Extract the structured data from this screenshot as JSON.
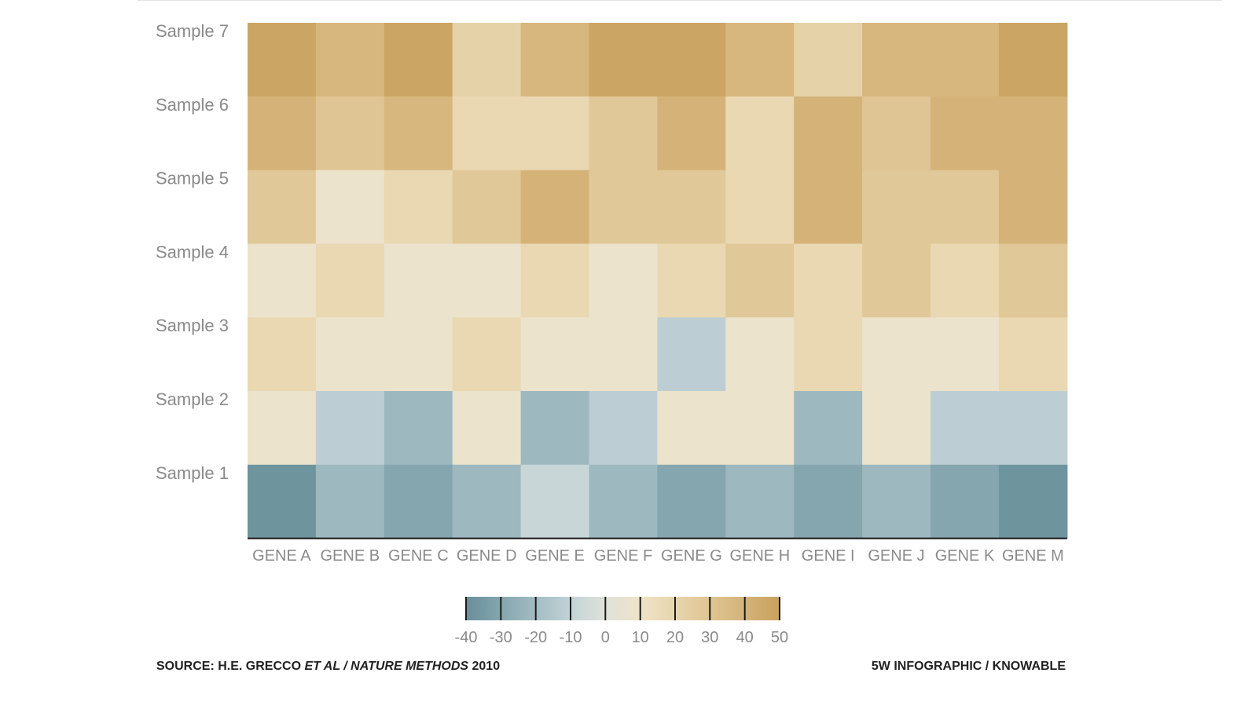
{
  "chart_data": {
    "type": "heatmap",
    "columns": [
      "GENE A",
      "GENE B",
      "GENE C",
      "GENE D",
      "GENE E",
      "GENE F",
      "GENE G",
      "GENE H",
      "GENE I",
      "GENE J",
      "GENE K",
      "GENE M"
    ],
    "rows": [
      "Sample 7",
      "Sample 6",
      "Sample 5",
      "Sample 4",
      "Sample 3",
      "Sample 2",
      "Sample 1"
    ],
    "values": [
      [
        48,
        38,
        48,
        22,
        38,
        48,
        48,
        38,
        22,
        38,
        38,
        48
      ],
      [
        40,
        30,
        38,
        18,
        18,
        28,
        40,
        18,
        40,
        30,
        40,
        40
      ],
      [
        28,
        8,
        18,
        28,
        40,
        28,
        28,
        18,
        40,
        28,
        28,
        40
      ],
      [
        8,
        18,
        8,
        8,
        18,
        8,
        18,
        28,
        18,
        28,
        18,
        28
      ],
      [
        18,
        8,
        8,
        18,
        8,
        8,
        -12,
        8,
        18,
        8,
        8,
        18
      ],
      [
        8,
        -12,
        -22,
        8,
        -22,
        -12,
        8,
        8,
        -22,
        8,
        -12,
        -12
      ],
      [
        -38,
        -22,
        -30,
        -22,
        -8,
        -22,
        -30,
        -22,
        -30,
        -22,
        -30,
        -38
      ]
    ],
    "color_scale": {
      "min": -40,
      "max": 50,
      "ticks": [
        "-40",
        "-30",
        "-20",
        "-10",
        "0",
        "10",
        "20",
        "30",
        "40",
        "50"
      ],
      "stops": [
        {
          "value": -40,
          "color": "#688f9a"
        },
        {
          "value": -30,
          "color": "#85a6ae"
        },
        {
          "value": -20,
          "color": "#a3bcc3"
        },
        {
          "value": -10,
          "color": "#c2d3d7"
        },
        {
          "value": 0,
          "color": "#dfe2da"
        },
        {
          "value": 10,
          "color": "#efe3c8"
        },
        {
          "value": 20,
          "color": "#e7d5ad"
        },
        {
          "value": 30,
          "color": "#dfc593"
        },
        {
          "value": 40,
          "color": "#d5b378"
        },
        {
          "value": 50,
          "color": "#c8a25e"
        }
      ]
    }
  },
  "footer": {
    "source_prefix": "SOURCE: H.E. GRECCO ",
    "source_italic": "ET AL / NATURE METHODS",
    "source_suffix": " 2010",
    "credit": "5W INFOGRAPHIC / KNOWABLE"
  }
}
